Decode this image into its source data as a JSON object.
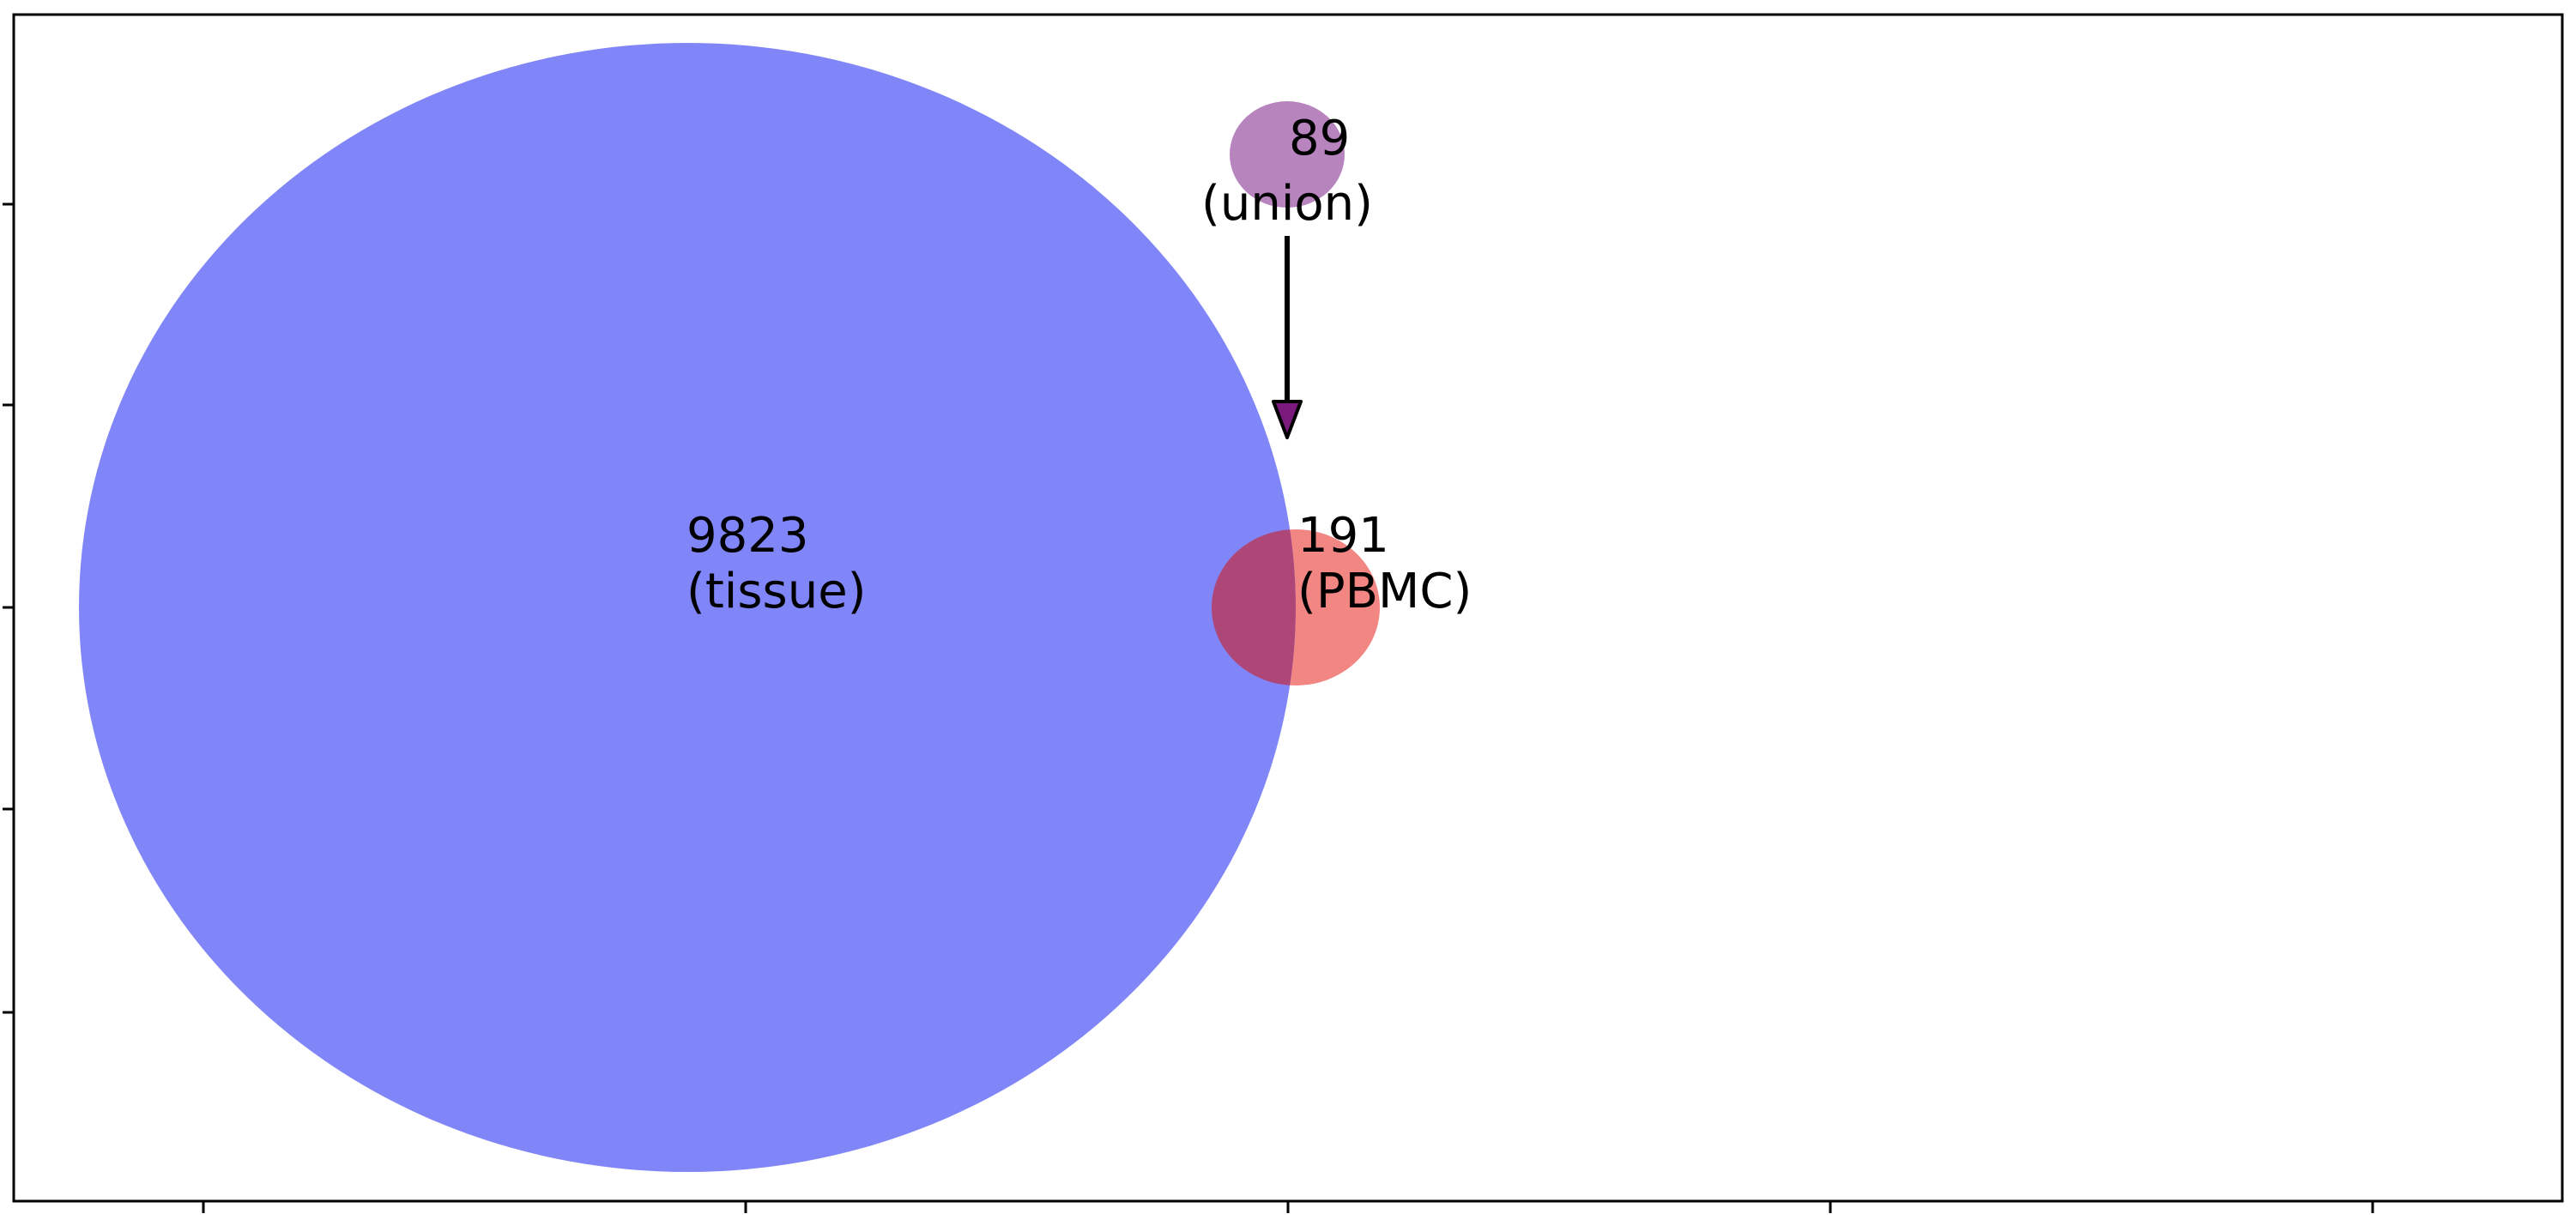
{
  "figure": {
    "title": "",
    "colors": {
      "tissue": "#8086f7",
      "pbmc": "#f18683",
      "overlap": "#af4678",
      "union_marker": "#b784bd",
      "arrow_head": "#7a1a7d",
      "frame": "#000000"
    },
    "sets": {
      "tissue": {
        "count": "9823",
        "name": "(tissue)"
      },
      "pbmc": {
        "count": "191",
        "name": "(PBMC)"
      },
      "union": {
        "count": "89",
        "name": "(union)"
      }
    }
  }
}
